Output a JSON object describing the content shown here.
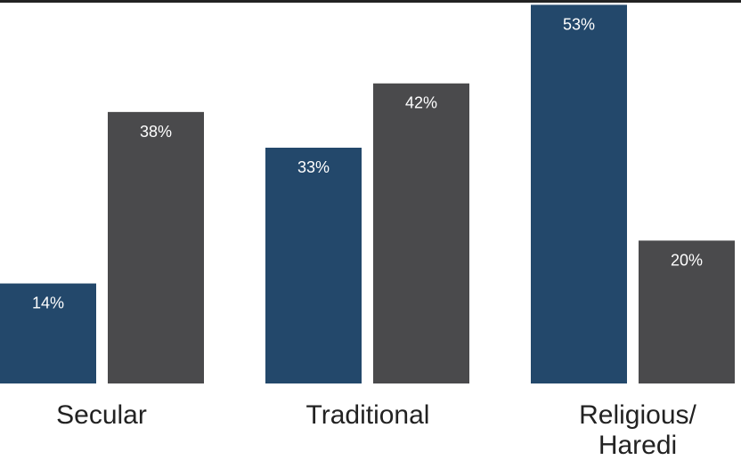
{
  "chart_data": {
    "type": "bar",
    "categories": [
      "Secular",
      "Traditional",
      "Religious/\nHaredi"
    ],
    "series": [
      {
        "values": [
          14,
          33,
          53
        ]
      },
      {
        "values": [
          38,
          42,
          20
        ]
      }
    ],
    "data_labels": [
      [
        "14%",
        "33%",
        "53%"
      ],
      [
        "38%",
        "42%",
        "20%"
      ]
    ],
    "ylim": [
      0,
      60
    ],
    "grid": false,
    "legend": "none"
  },
  "colors": {
    "series_0": "#23486b",
    "series_1": "#4a4a4c",
    "label_text": "#ffffff",
    "axis_text": "#222222"
  }
}
